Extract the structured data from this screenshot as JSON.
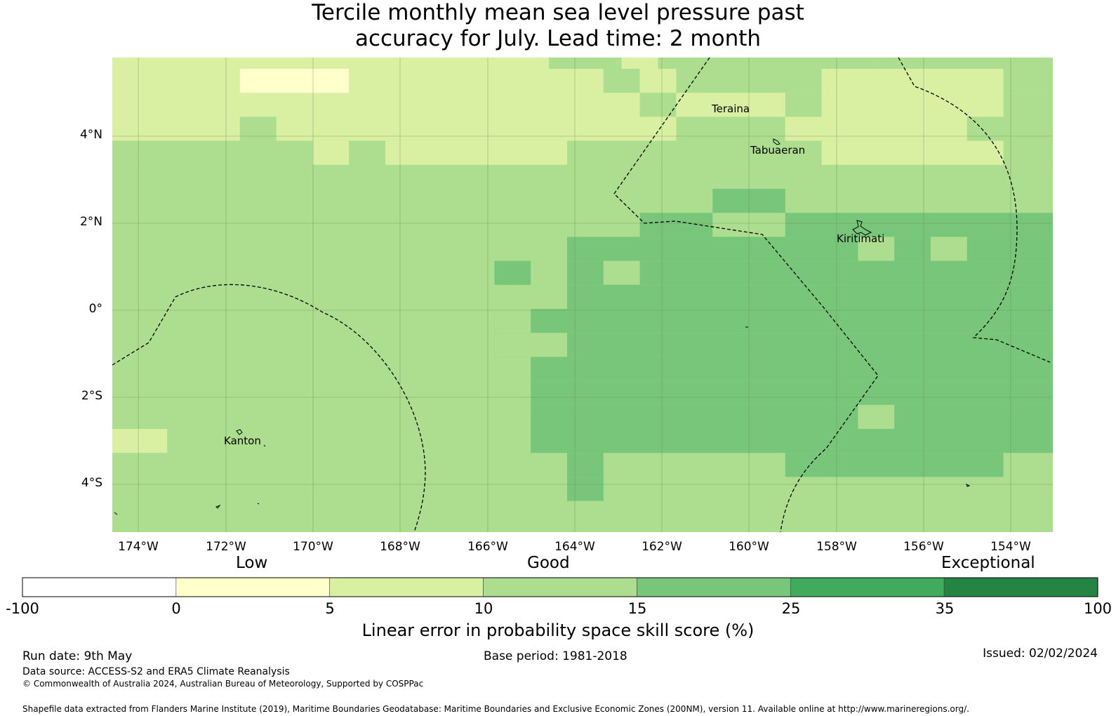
{
  "title": {
    "line1": "Tercile monthly mean sea level pressure past",
    "line2": "accuracy for July. Lead time: 2 month"
  },
  "map": {
    "lat_labels": [
      "4°N",
      "2°N",
      "0°",
      "2°S",
      "4°S"
    ],
    "lon_labels": [
      "174°W",
      "172°W",
      "170°W",
      "168°W",
      "166°W",
      "164°W",
      "162°W",
      "160°W",
      "158°W",
      "156°W",
      "154°W"
    ],
    "places": {
      "teraina": "Teraina",
      "tabuaeran": "Tabuaeran",
      "kiritimati": "Kiritimati",
      "kanton": "Kanton"
    }
  },
  "legend": {
    "categories": {
      "low": "Low",
      "good": "Good",
      "exceptional": "Exceptional"
    },
    "ticks": [
      "-100",
      "0",
      "5",
      "10",
      "15",
      "25",
      "35",
      "100"
    ],
    "colors": [
      "#ffffff",
      "#ffffcc",
      "#d9f0a3",
      "#addd8e",
      "#78c679",
      "#41ab5d",
      "#238443"
    ],
    "label": "Linear error in probability space skill score (%)"
  },
  "footer": {
    "run_date": "Run date: 9th May",
    "base_period": "Base period: 1981-2018",
    "issued": "Issued: 02/02/2024",
    "data_source": "Data source: ACCESS-S2 and ERA5 Climate Reanalysis",
    "copyright": "© Commonwealth of Australia 2024, Australian Bureau of Meteorology, Supported by COSPPac",
    "shapefile": "Shapefile data extracted from Flanders Marine Institute (2019), Maritime Boundaries Geodatabase: Maritime Boundaries and Exclusive Economic Zones (200NM), version 11. Available online at http://www.marineregions.org/."
  }
}
